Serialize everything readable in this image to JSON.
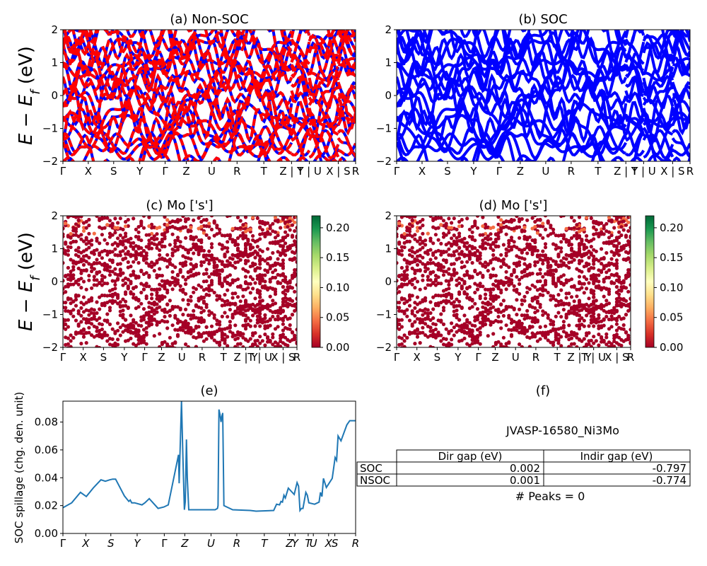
{
  "kpath_labels": [
    "Γ",
    "X",
    "S",
    "Y",
    "Γ",
    "Z",
    "U",
    "R",
    "T",
    "Z|Y",
    "T|U",
    "X|S",
    "R"
  ],
  "chart_data": [
    {
      "type": "line",
      "panel": "a",
      "title": "(a) Non-SOC",
      "ylabel": "E - E_f (eV)",
      "ylim": [
        -2,
        2
      ],
      "yticks": [
        "−2",
        "−1",
        "0",
        "1",
        "2"
      ],
      "xtick_labels": [
        "Γ",
        "X",
        "S",
        "Y",
        "Γ",
        "Z",
        "U",
        "R",
        "T",
        "Z | Y",
        "T | U",
        "X | S",
        "R"
      ],
      "series": [
        {
          "color": "#0000ff",
          "style": "solid"
        },
        {
          "color": "#ff0000",
          "style": "dashed"
        }
      ]
    },
    {
      "type": "line",
      "panel": "b",
      "title": "(b) SOC",
      "ylim": [
        -2,
        2
      ],
      "yticks": [
        "−2",
        "−1",
        "0",
        "1",
        "2"
      ],
      "xtick_labels": [
        "Γ",
        "X",
        "S",
        "Y",
        "Γ",
        "Z",
        "U",
        "R",
        "T",
        "Z | Y",
        "T | U",
        "X | S",
        "R"
      ],
      "series": [
        {
          "color": "#0000ff",
          "style": "solid"
        }
      ]
    },
    {
      "type": "scatter",
      "panel": "c",
      "title": "(c)  Mo ['s']",
      "ylabel": "E - E_f (eV)",
      "ylim": [
        -2,
        2
      ],
      "yticks": [
        "−2",
        "−1",
        "0",
        "1",
        "2"
      ],
      "xtick_labels": [
        "Γ",
        "X",
        "S",
        "Y",
        "Γ",
        "Z",
        "U",
        "R",
        "T",
        "Z | Y",
        "T | U",
        "X | S",
        "R"
      ],
      "colorbar": {
        "colormap": "RdYlGn",
        "range": [
          0,
          0.22
        ],
        "ticks": [
          "0.00",
          "0.05",
          "0.10",
          "0.15",
          "0.20"
        ]
      }
    },
    {
      "type": "scatter",
      "panel": "d",
      "title": "(d) Mo ['s']",
      "ylim": [
        -2,
        2
      ],
      "yticks": [
        "−2",
        "−1",
        "0",
        "1",
        "2"
      ],
      "xtick_labels": [
        "Γ",
        "X",
        "S",
        "Y",
        "Γ",
        "Z",
        "U",
        "R",
        "T",
        "Z | Y",
        "T | U",
        "X | S",
        "R"
      ],
      "colorbar": {
        "colormap": "RdYlGn",
        "range": [
          0,
          0.22
        ],
        "ticks": [
          "0.00",
          "0.05",
          "0.10",
          "0.15",
          "0.20"
        ]
      }
    },
    {
      "type": "line",
      "panel": "e",
      "title": "(e)",
      "ylabel": "SOC spillage (chg. den. unit)",
      "ylim": [
        0,
        0.095
      ],
      "yticks": [
        "0.00",
        "0.02",
        "0.04",
        "0.06",
        "0.08"
      ],
      "xtick_labels": [
        "Γ",
        "X",
        "S",
        "Y",
        "Γ",
        "Z",
        "U",
        "R",
        "T",
        "Z",
        "Y",
        "T",
        "U",
        "X",
        "S",
        "R"
      ],
      "series": [
        {
          "color": "#1f77b4",
          "x": [
            0,
            0.03,
            0.06,
            0.08,
            0.105,
            0.13,
            0.145,
            0.16,
            0.17,
            0.18,
            0.21,
            0.225,
            0.23,
            0.235,
            0.245,
            0.27,
            0.28,
            0.295,
            0.325,
            0.345,
            0.36,
            0.395,
            0.397,
            0.405,
            0.41,
            0.415,
            0.418,
            0.422,
            0.425,
            0.43,
            0.52,
            0.528,
            0.53,
            0.533,
            0.537,
            0.54,
            0.543,
            0.546,
            0.55,
            0.58,
            0.64,
            0.66,
            0.72,
            0.73,
            0.74,
            0.745,
            0.75,
            0.755,
            0.76,
            0.77,
            0.79,
            0.8,
            0.805,
            0.81,
            0.815,
            0.82,
            0.83,
            0.835,
            0.84,
            0.86,
            0.875,
            0.88,
            0.885,
            0.89,
            0.9,
            0.92,
            0.93,
            0.935,
            0.94,
            0.95,
            0.97,
            0.98,
            1.0
          ],
          "y": [
            0.0185,
            0.022,
            0.0295,
            0.0265,
            0.033,
            0.0385,
            0.0375,
            0.0385,
            0.039,
            0.039,
            0.027,
            0.023,
            0.024,
            0.022,
            0.022,
            0.0205,
            0.022,
            0.025,
            0.018,
            0.019,
            0.0205,
            0.0565,
            0.036,
            0.095,
            0.055,
            0.017,
            0.023,
            0.0675,
            0.04,
            0.017,
            0.017,
            0.018,
            0.02,
            0.089,
            0.085,
            0.08,
            0.084,
            0.0865,
            0.02,
            0.017,
            0.0165,
            0.016,
            0.0165,
            0.021,
            0.0205,
            0.023,
            0.0225,
            0.0275,
            0.0255,
            0.0325,
            0.028,
            0.0365,
            0.034,
            0.0165,
            0.018,
            0.018,
            0.0295,
            0.0275,
            0.022,
            0.021,
            0.0225,
            0.0295,
            0.0265,
            0.0395,
            0.033,
            0.0395,
            0.0545,
            0.0525,
            0.07,
            0.0665,
            0.078,
            0.081,
            0.081
          ]
        }
      ]
    }
  ],
  "info": {
    "title": "(f)",
    "material_id": "JVASP-16580_Ni3Mo",
    "table": {
      "headers": [
        "Dir gap (eV)",
        "Indir gap (eV)"
      ],
      "rows": [
        {
          "label": "SOC",
          "dir": "0.002",
          "indir": "-0.797"
        },
        {
          "label": "NSOC",
          "dir": "0.001",
          "indir": "-0.774"
        }
      ]
    },
    "peaks": "# Peaks = 0"
  }
}
